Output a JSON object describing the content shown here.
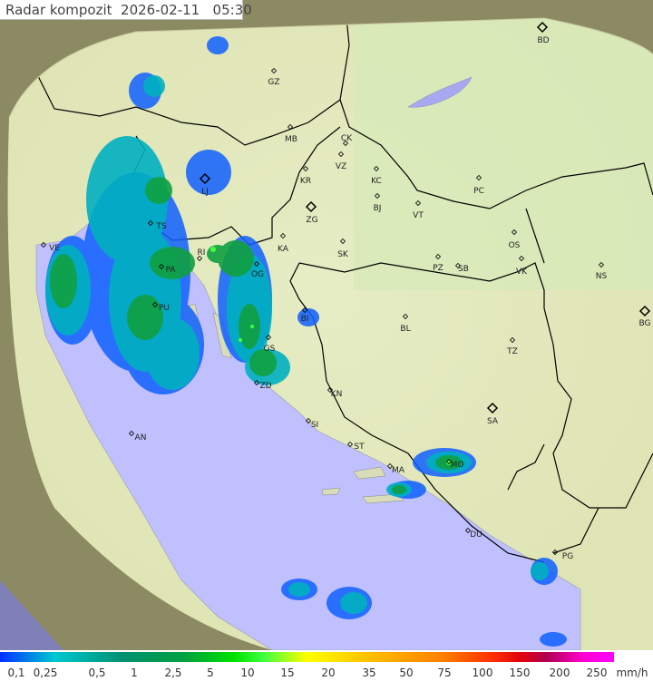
{
  "header": {
    "title": "Radar kompozit",
    "date": "2026-02-11",
    "time": "05:30"
  },
  "legend": {
    "labels": [
      "0,1",
      "0,25",
      "0,5",
      "1",
      "2,5",
      "5",
      "10",
      "15",
      "20",
      "35",
      "50",
      "75",
      "100",
      "150",
      "200",
      "250"
    ],
    "unit": "mm/h"
  },
  "cities": [
    {
      "code": "BD",
      "major": true
    },
    {
      "code": "GZ"
    },
    {
      "code": "MB"
    },
    {
      "code": "CK"
    },
    {
      "code": "VZ"
    },
    {
      "code": "KR"
    },
    {
      "code": "KC"
    },
    {
      "code": "PC"
    },
    {
      "code": "LJ",
      "major": true
    },
    {
      "code": "BJ"
    },
    {
      "code": "VT"
    },
    {
      "code": "ZG",
      "major": true
    },
    {
      "code": "TS"
    },
    {
      "code": "OS"
    },
    {
      "code": "VE"
    },
    {
      "code": "RI"
    },
    {
      "code": "KA"
    },
    {
      "code": "SK"
    },
    {
      "code": "PZ"
    },
    {
      "code": "SB"
    },
    {
      "code": "VK"
    },
    {
      "code": "NS"
    },
    {
      "code": "PA"
    },
    {
      "code": "OG"
    },
    {
      "code": "PU"
    },
    {
      "code": "BI"
    },
    {
      "code": "BG",
      "major": true
    },
    {
      "code": "BL"
    },
    {
      "code": "TZ"
    },
    {
      "code": "GS"
    },
    {
      "code": "ZD"
    },
    {
      "code": "KN"
    },
    {
      "code": "SA",
      "major": true
    },
    {
      "code": "SI"
    },
    {
      "code": "AN"
    },
    {
      "code": "ST"
    },
    {
      "code": "MA"
    },
    {
      "code": "MO"
    },
    {
      "code": "DU"
    },
    {
      "code": "PG"
    }
  ],
  "colors": {
    "sea": "#c0c0ff",
    "land_in_range": "#e8ecc0",
    "outside_range": "#8a8a60",
    "border": "#000000"
  }
}
